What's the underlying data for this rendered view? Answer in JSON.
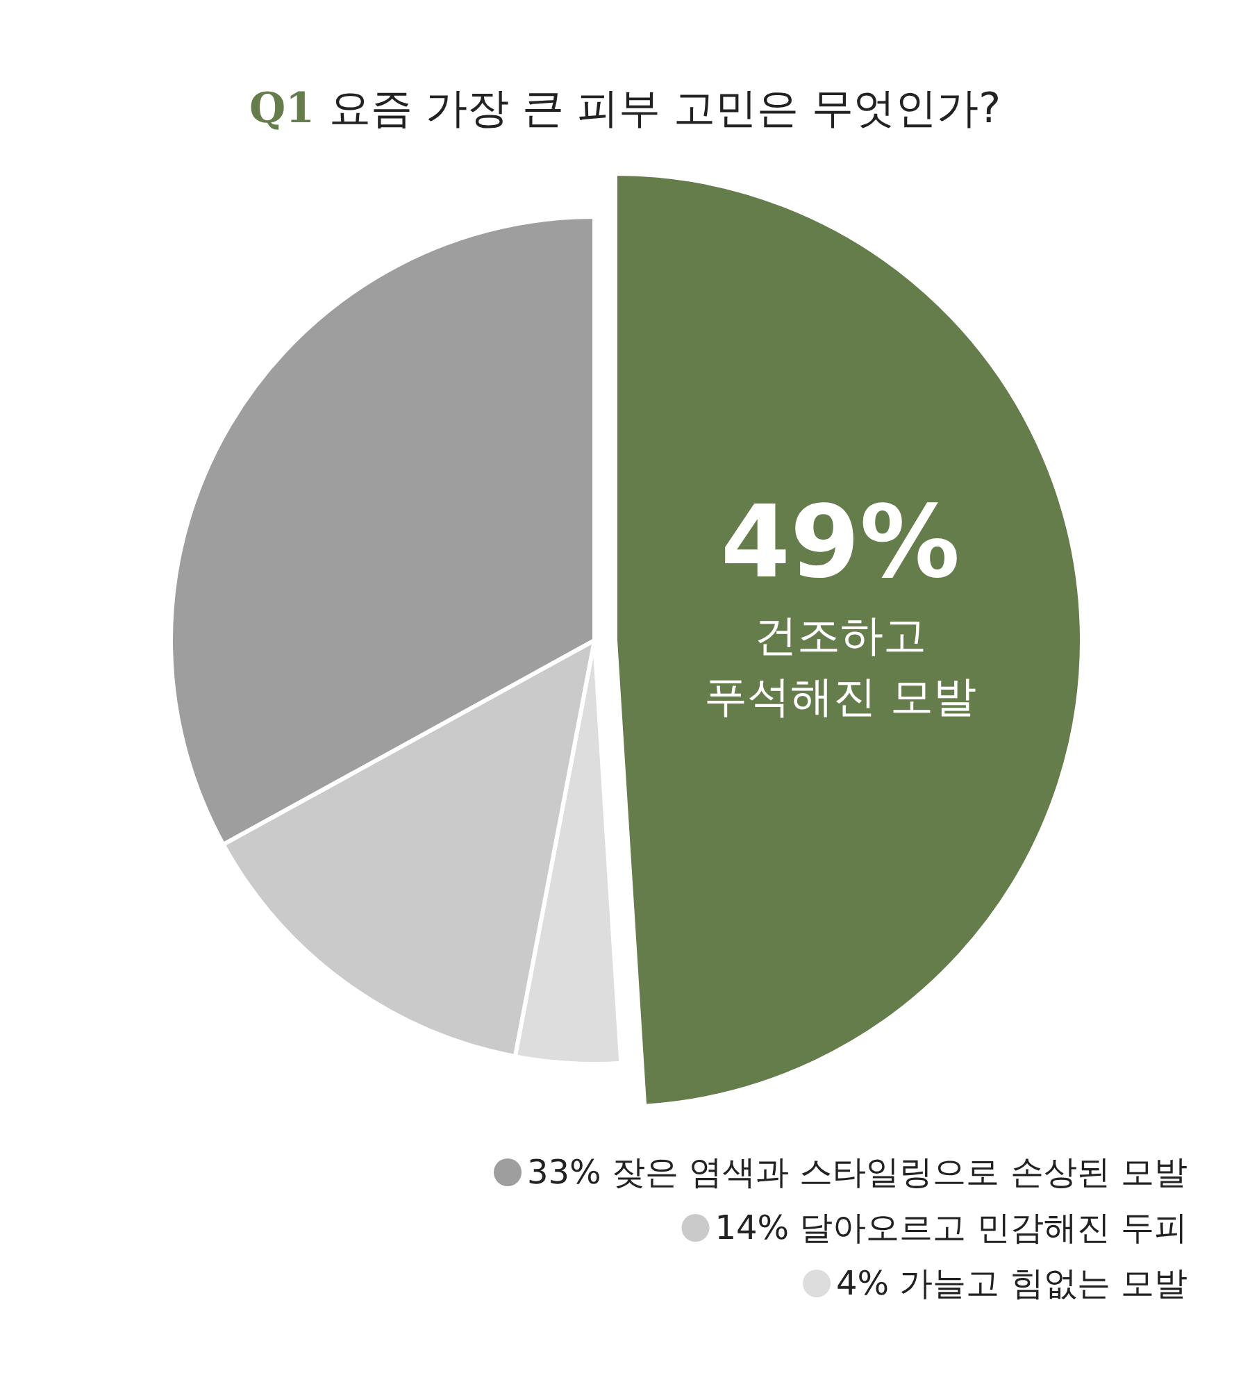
{
  "chart_data": {
    "type": "pie",
    "title": "Q1 요즘 가장 큰 피부 고민은 무엇인가?",
    "categories": [
      "건조하고 푸석해진 모발",
      "가늘고 힘없는 모발",
      "달아오르고 민감해진 두피",
      "잦은 염색과 스타일링으로 손상된 모발"
    ],
    "values": [
      49,
      4,
      14,
      33
    ],
    "colors": [
      "#647d4b",
      "#dcdddc",
      "#c9cac9",
      "#9d9e9d"
    ],
    "value_labels": [
      "49%",
      "4%",
      "14%",
      "33%"
    ],
    "legend": "bottom right"
  }
}
